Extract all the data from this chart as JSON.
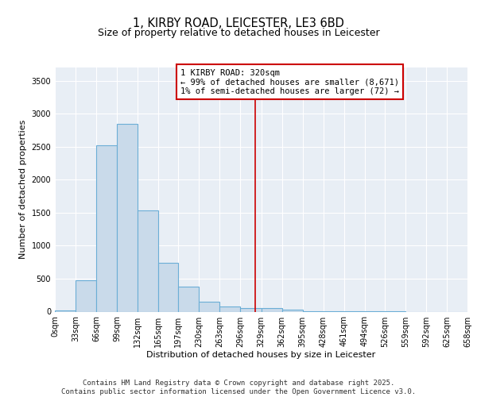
{
  "title_line1": "1, KIRBY ROAD, LEICESTER, LE3 6BD",
  "title_line2": "Size of property relative to detached houses in Leicester",
  "xlabel": "Distribution of detached houses by size in Leicester",
  "ylabel": "Number of detached properties",
  "bar_edges": [
    0,
    33,
    66,
    99,
    132,
    165,
    197,
    230,
    263,
    296,
    329,
    362,
    395,
    428,
    461,
    494,
    526,
    559,
    592,
    625,
    658
  ],
  "bar_heights": [
    15,
    475,
    2520,
    2840,
    1530,
    740,
    380,
    155,
    80,
    50,
    60,
    30,
    8,
    3,
    2,
    1,
    1,
    0,
    0,
    0
  ],
  "bar_facecolor": "#c9daea",
  "bar_edgecolor": "#6baed6",
  "bar_linewidth": 0.8,
  "vline_x": 320,
  "vline_color": "#cc0000",
  "vline_linewidth": 1.2,
  "annotation_text": "1 KIRBY ROAD: 320sqm\n← 99% of detached houses are smaller (8,671)\n1% of semi-detached houses are larger (72) →",
  "annotation_box_color": "#cc0000",
  "ylim": [
    0,
    3700
  ],
  "yticks": [
    0,
    500,
    1000,
    1500,
    2000,
    2500,
    3000,
    3500
  ],
  "background_color": "#e8eef5",
  "grid_color": "#ffffff",
  "tick_labels": [
    "0sqm",
    "33sqm",
    "66sqm",
    "99sqm",
    "132sqm",
    "165sqm",
    "197sqm",
    "230sqm",
    "263sqm",
    "296sqm",
    "329sqm",
    "362sqm",
    "395sqm",
    "428sqm",
    "461sqm",
    "494sqm",
    "526sqm",
    "559sqm",
    "592sqm",
    "625sqm",
    "658sqm"
  ],
  "footer_text": "Contains HM Land Registry data © Crown copyright and database right 2025.\nContains public sector information licensed under the Open Government Licence v3.0.",
  "title_fontsize": 10.5,
  "subtitle_fontsize": 9,
  "ylabel_fontsize": 8,
  "xlabel_fontsize": 8,
  "tick_fontsize": 7,
  "footer_fontsize": 6.5,
  "annot_fontsize": 7.5
}
